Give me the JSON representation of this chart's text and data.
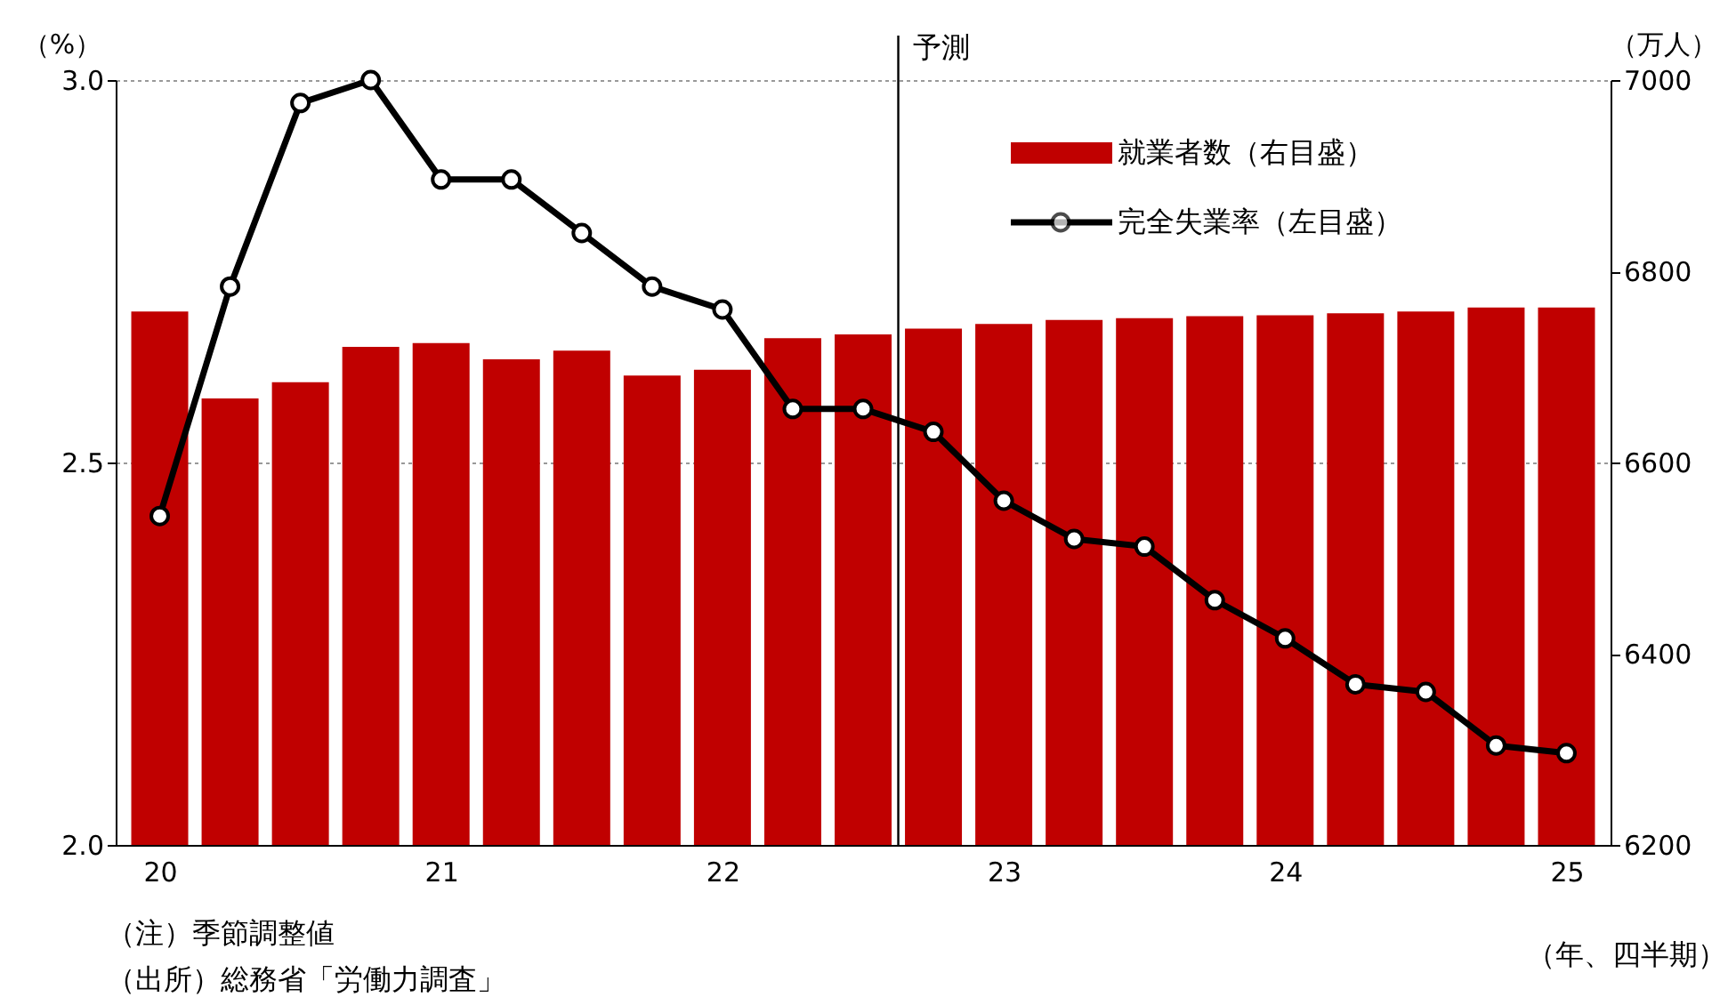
{
  "chart_data": {
    "type": "bar",
    "x": [
      2020,
      2020.25,
      2020.5,
      2020.75,
      2021,
      2021.25,
      2021.5,
      2021.75,
      2022,
      2022.25,
      2022.5,
      2022.75,
      2023,
      2023.25,
      2023.5,
      2023.75,
      2024,
      2024.25,
      2024.5,
      2024.75,
      2025
    ],
    "xlim": [
      2019.875,
      2025.125
    ],
    "xticks": [
      {
        "value": 2020,
        "label": "20"
      },
      {
        "value": 2021,
        "label": "21"
      },
      {
        "value": 2022,
        "label": "22"
      },
      {
        "value": 2023,
        "label": "23"
      },
      {
        "value": 2024,
        "label": "24"
      },
      {
        "value": 2025,
        "label": "25"
      }
    ],
    "series": [
      {
        "name": "就業者数（右目盛）",
        "axis": "y2",
        "color": "#c00000",
        "values": [
          6758,
          6667,
          6684,
          6721,
          6725,
          6708,
          6717,
          6691,
          6697,
          6730,
          6734,
          6740,
          6745,
          6749,
          6751,
          6753,
          6754,
          6756,
          6758,
          6762,
          6762
        ]
      },
      {
        "name": "完全失業率（左目盛）",
        "type": "line",
        "color": "#000000",
        "marker": "circle",
        "values": [
          2.43,
          2.73,
          2.97,
          3.0,
          2.87,
          2.87,
          2.8,
          2.73,
          2.7,
          2.57,
          2.57,
          2.54,
          2.45,
          2.4,
          2.39,
          2.32,
          2.27,
          2.21,
          2.2,
          2.13,
          2.12
        ]
      }
    ],
    "ylim": [
      2.0,
      3.0
    ],
    "yticks": [
      {
        "value": 2,
        "label": "2.0"
      },
      2.5,
      {
        "value": 3,
        "label": "3.0"
      }
    ],
    "y2lim": [
      6200,
      7000
    ],
    "y2ticks": [
      6200,
      6400,
      6600,
      6800,
      7000
    ],
    "ylabel": "（%）",
    "y2label": "（万人）",
    "grid": "y",
    "legend": "top right",
    "ref_lines": [
      {
        "axis": "x",
        "value": 2022.625,
        "label": "予測"
      }
    ],
    "annotations": [
      "（注）季節調整値",
      "（出所）総務省「労働力調査」",
      "（年、四半期）"
    ]
  }
}
